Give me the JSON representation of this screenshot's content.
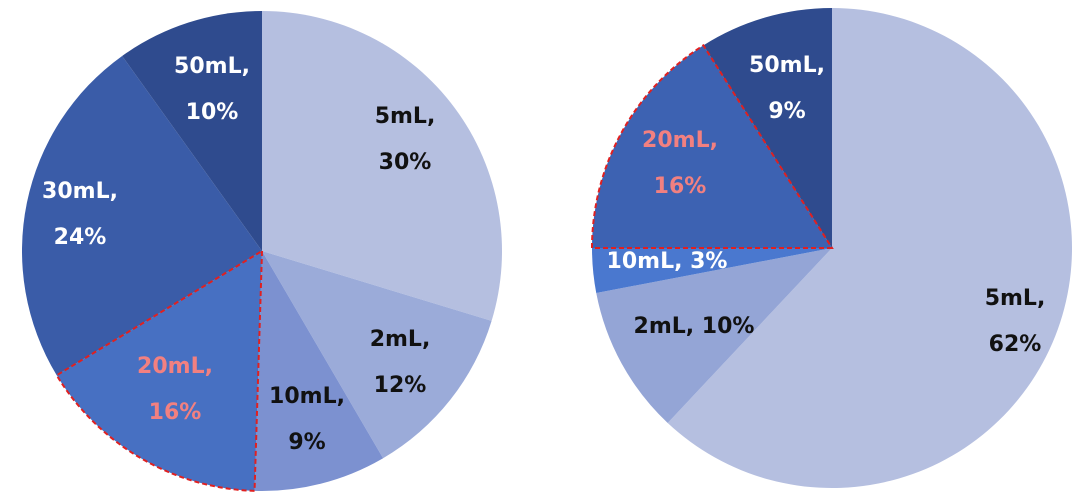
{
  "chart_data": [
    {
      "type": "pie",
      "start_angle_deg": 0,
      "direction": "clockwise",
      "slices": [
        {
          "category": "5mL",
          "value": 30,
          "color": "#B5BFE0",
          "label_lines": [
            "5mL,",
            "30%"
          ],
          "label_color": "#111111",
          "highlight": false
        },
        {
          "category": "2mL",
          "value": 12,
          "color": "#9BABD9",
          "label_lines": [
            "2mL,",
            "12%"
          ],
          "label_color": "#111111",
          "highlight": false
        },
        {
          "category": "10mL",
          "value": 9,
          "color": "#7C91D0",
          "label_lines": [
            "10mL,",
            "9%"
          ],
          "label_color": "#111111",
          "highlight": false
        },
        {
          "category": "20mL",
          "value": 16,
          "color": "#4770C2",
          "label_lines": [
            "20mL,",
            "16%"
          ],
          "label_color": "#F28080",
          "highlight": true
        },
        {
          "category": "30mL",
          "value": 24,
          "color": "#3A5CA8",
          "label_lines": [
            "30mL,",
            "24%"
          ],
          "label_color": "#FFFFFF",
          "highlight": false
        },
        {
          "category": "50mL",
          "value": 10,
          "color": "#2F4B8E",
          "label_lines": [
            "50mL,",
            "10%"
          ],
          "label_color": "#FFFFFF",
          "highlight": false
        }
      ]
    },
    {
      "type": "pie",
      "start_angle_deg": 0,
      "direction": "clockwise",
      "slices": [
        {
          "category": "5mL",
          "value": 62,
          "color": "#B5BFE0",
          "label_lines": [
            "5mL,",
            "62%"
          ],
          "label_color": "#111111",
          "highlight": false
        },
        {
          "category": "2mL",
          "value": 10,
          "color": "#94A5D6",
          "label_lines": [
            "2mL,  10%"
          ],
          "label_color": "#111111",
          "highlight": false
        },
        {
          "category": "10mL",
          "value": 3,
          "color": "#4A78CF",
          "label_lines": [
            "10mL,  3%"
          ],
          "label_color": "#FFFFFF",
          "highlight": false
        },
        {
          "category": "20mL",
          "value": 16,
          "color": "#3D62B2",
          "label_lines": [
            "20mL,",
            "16%"
          ],
          "label_color": "#F28080",
          "highlight": true
        },
        {
          "category": "50mL",
          "value": 9,
          "color": "#2F4B8E",
          "label_lines": [
            "50mL,",
            "9%"
          ],
          "label_color": "#FFFFFF",
          "highlight": false
        }
      ]
    }
  ],
  "highlight_stroke": "#E02020"
}
